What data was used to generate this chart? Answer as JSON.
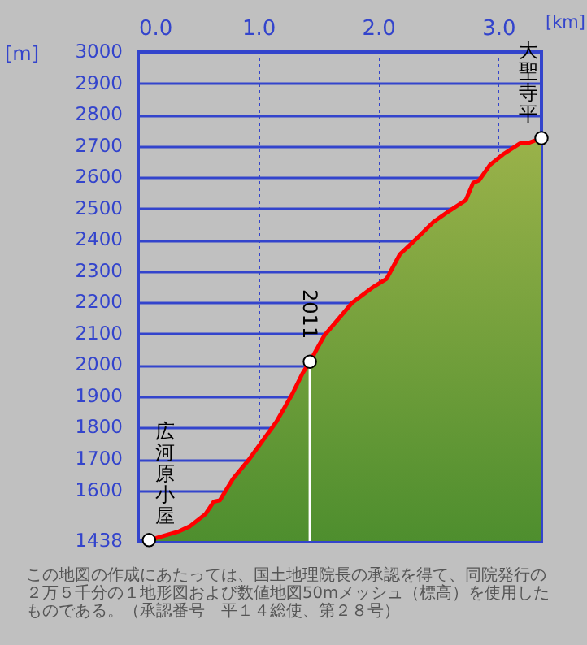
{
  "chart_data": {
    "type": "area",
    "xlabel": "[km]",
    "ylabel": "[m]",
    "x": [
      0.09,
      0.34,
      0.43,
      0.56,
      0.63,
      0.68,
      0.79,
      0.92,
      1.15,
      1.28,
      1.37,
      1.43,
      1.55,
      1.78,
      1.96,
      2.07,
      2.18,
      2.3,
      2.46,
      2.59,
      2.73,
      2.79,
      2.84,
      2.93,
      3.04,
      3.18,
      3.24,
      3.36
    ],
    "series": [
      {
        "color": "#ff0000",
        "values": [
          1441,
          1469,
          1485,
          1524,
          1564,
          1568,
          1637,
          1697,
          1818,
          1905,
          1974,
          2011,
          2094,
          2198,
          2250,
          2276,
          2354,
          2397,
          2457,
          2492,
          2527,
          2582,
          2590,
          2639,
          2673,
          2708,
          2708,
          2725
        ]
      }
    ],
    "xlim": [
      0,
      3.36
    ],
    "xticks": [
      {
        "value": 0,
        "label": "0.0"
      },
      {
        "value": 1,
        "label": "1.0"
      },
      {
        "value": 2,
        "label": "2.0"
      },
      {
        "value": 3,
        "label": "3.0"
      }
    ],
    "ylim": [
      1438,
      3000
    ],
    "yticks": [
      1438,
      1600,
      1700,
      1800,
      1900,
      2000,
      2100,
      2200,
      2300,
      2400,
      2500,
      2600,
      2700,
      2800,
      2900,
      3000
    ],
    "grid": true,
    "annotations": [
      {
        "text": "広河原小屋",
        "x": 0.09,
        "y": 1441
      },
      {
        "text": "2011",
        "x": 1.43,
        "y": 2011
      },
      {
        "text": "大聖寺平",
        "x": 3.36,
        "y": 2725
      },
      "この地図の作成にあたっては、国土地理院長の承認を得て、同院発行の",
      "２万５千分の１地形図および数値地図50mメッシュ（標高）を使用した",
      "ものである。（承認番号　平１４総使、第２８号）"
    ]
  }
}
